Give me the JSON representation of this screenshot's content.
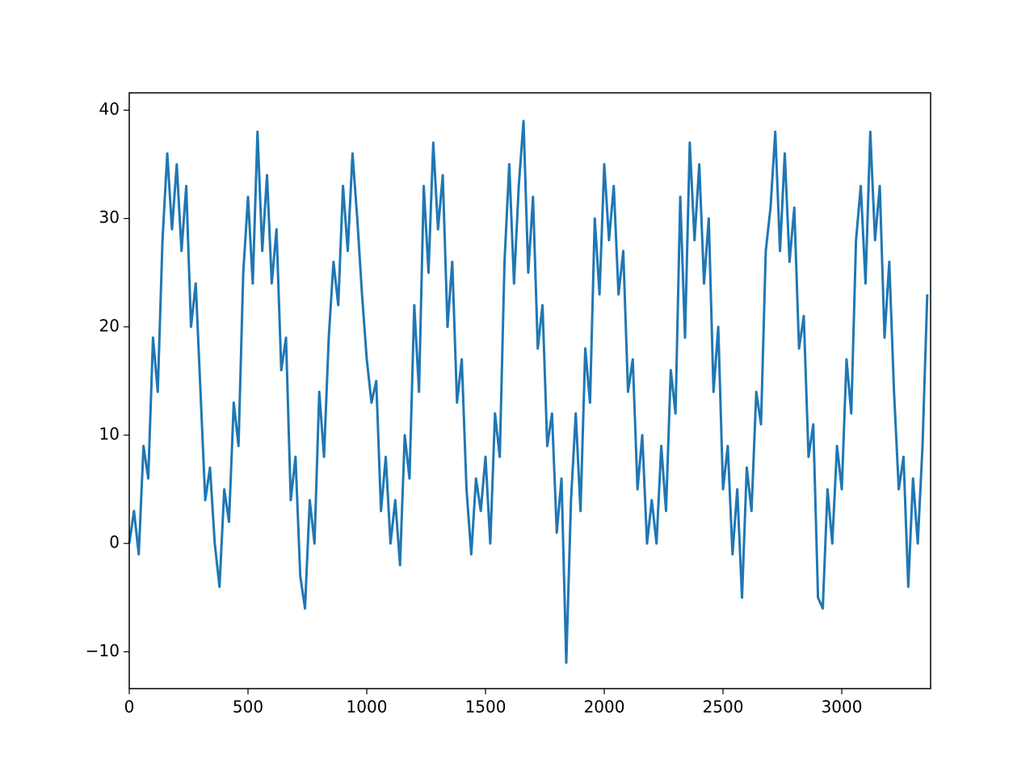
{
  "chart_data": {
    "type": "line",
    "color": "#1f77b4",
    "x": [
      0,
      20,
      40,
      60,
      80,
      100,
      120,
      140,
      160,
      180,
      200,
      220,
      240,
      260,
      280,
      300,
      320,
      340,
      360,
      380,
      400,
      420,
      440,
      460,
      480,
      500,
      520,
      540,
      560,
      580,
      600,
      620,
      640,
      660,
      680,
      700,
      720,
      740,
      760,
      780,
      800,
      820,
      840,
      860,
      880,
      900,
      920,
      940,
      960,
      980,
      1000,
      1020,
      1040,
      1060,
      1080,
      1100,
      1120,
      1140,
      1160,
      1180,
      1200,
      1220,
      1240,
      1260,
      1280,
      1300,
      1320,
      1340,
      1360,
      1380,
      1400,
      1420,
      1440,
      1460,
      1480,
      1500,
      1520,
      1540,
      1560,
      1580,
      1600,
      1620,
      1640,
      1660,
      1680,
      1700,
      1720,
      1740,
      1760,
      1780,
      1800,
      1820,
      1840,
      1860,
      1880,
      1900,
      1920,
      1940,
      1960,
      1980,
      2000,
      2020,
      2040,
      2060,
      2080,
      2100,
      2120,
      2140,
      2160,
      2180,
      2200,
      2220,
      2240,
      2260,
      2280,
      2300,
      2320,
      2340,
      2360,
      2380,
      2400,
      2420,
      2440,
      2460,
      2480,
      2500,
      2520,
      2540,
      2560,
      2580,
      2600,
      2620,
      2640,
      2660,
      2680,
      2700,
      2720,
      2740,
      2760,
      2780,
      2800,
      2820,
      2840,
      2860,
      2880,
      2900,
      2920,
      2940,
      2960,
      2980,
      3000,
      3020,
      3040,
      3060,
      3080,
      3100,
      3120,
      3140,
      3160,
      3180,
      3200,
      3220,
      3240,
      3260,
      3280,
      3300,
      3320,
      3340,
      3360
    ],
    "values": [
      0,
      3,
      -1,
      9,
      6,
      19,
      14,
      28,
      36,
      29,
      35,
      27,
      33,
      20,
      24,
      14,
      4,
      7,
      0,
      -4,
      5,
      2,
      13,
      9,
      25,
      32,
      24,
      38,
      27,
      34,
      24,
      29,
      16,
      19,
      4,
      8,
      -3,
      -6,
      4,
      0,
      14,
      8,
      19,
      26,
      22,
      33,
      27,
      36,
      30,
      23,
      17,
      13,
      15,
      3,
      8,
      0,
      4,
      -2,
      10,
      6,
      22,
      14,
      33,
      25,
      37,
      29,
      34,
      20,
      26,
      13,
      17,
      5,
      -1,
      6,
      3,
      8,
      0,
      12,
      8,
      26,
      35,
      24,
      33,
      39,
      25,
      32,
      18,
      22,
      9,
      12,
      1,
      6,
      -11,
      4,
      12,
      3,
      18,
      13,
      30,
      23,
      35,
      28,
      33,
      23,
      27,
      14,
      17,
      5,
      10,
      0,
      4,
      0,
      9,
      3,
      16,
      12,
      32,
      19,
      37,
      28,
      35,
      24,
      30,
      14,
      20,
      5,
      9,
      -1,
      5,
      -5,
      7,
      3,
      14,
      11,
      27,
      31,
      38,
      27,
      36,
      26,
      31,
      18,
      21,
      8,
      11,
      -5,
      -6,
      5,
      0,
      9,
      5,
      17,
      12,
      28,
      33,
      24,
      38,
      28,
      33,
      19,
      26,
      14,
      5,
      8,
      -4,
      6,
      0,
      9,
      23
    ],
    "xlim": [
      0,
      3374
    ],
    "ylim": [
      -13.4,
      41.6
    ],
    "xticks": [
      0,
      500,
      1000,
      1500,
      2000,
      2500,
      3000
    ],
    "yticks": [
      {
        "value": -10,
        "label": "−10"
      },
      0,
      10,
      20,
      30,
      40
    ]
  }
}
